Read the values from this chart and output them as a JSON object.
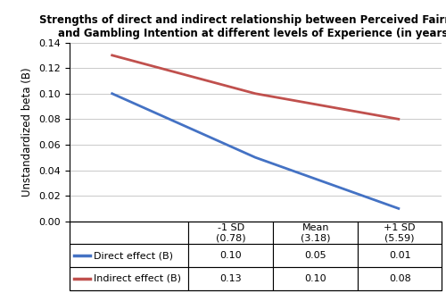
{
  "title_line1": "Strengths of direct and indirect relationship between Perceived Fairness",
  "title_line2": "and Gambling Intention at different levels of Experience (in years)",
  "ylabel": "Unstandardized beta (B)",
  "x_labels": [
    "-1 SD\n(0.78)",
    "Mean\n(3.18)",
    "+1 SD\n(5.59)"
  ],
  "x_positions": [
    0,
    1,
    2
  ],
  "direct_values": [
    0.1,
    0.05,
    0.01
  ],
  "indirect_values": [
    0.13,
    0.1,
    0.08
  ],
  "direct_color": "#4472C4",
  "indirect_color": "#C0504D",
  "ylim": [
    0.0,
    0.14
  ],
  "yticks": [
    0.0,
    0.02,
    0.04,
    0.06,
    0.08,
    0.1,
    0.12,
    0.14
  ],
  "legend_direct": "Direct effect (B)",
  "legend_indirect": "Indirect effect (B)",
  "table_header": [
    "",
    "-1 SD\n(0.78)",
    "Mean\n(3.18)",
    "+1 SD\n(5.59)"
  ],
  "table_row1": [
    "Direct effect (B)",
    "0.10",
    "0.05",
    "0.01"
  ],
  "table_row2": [
    "Indirect effect (B)",
    "0.13",
    "0.10",
    "0.08"
  ],
  "title_fontsize": 8.5,
  "ylabel_fontsize": 8.5,
  "tick_fontsize": 8,
  "table_fontsize": 8
}
